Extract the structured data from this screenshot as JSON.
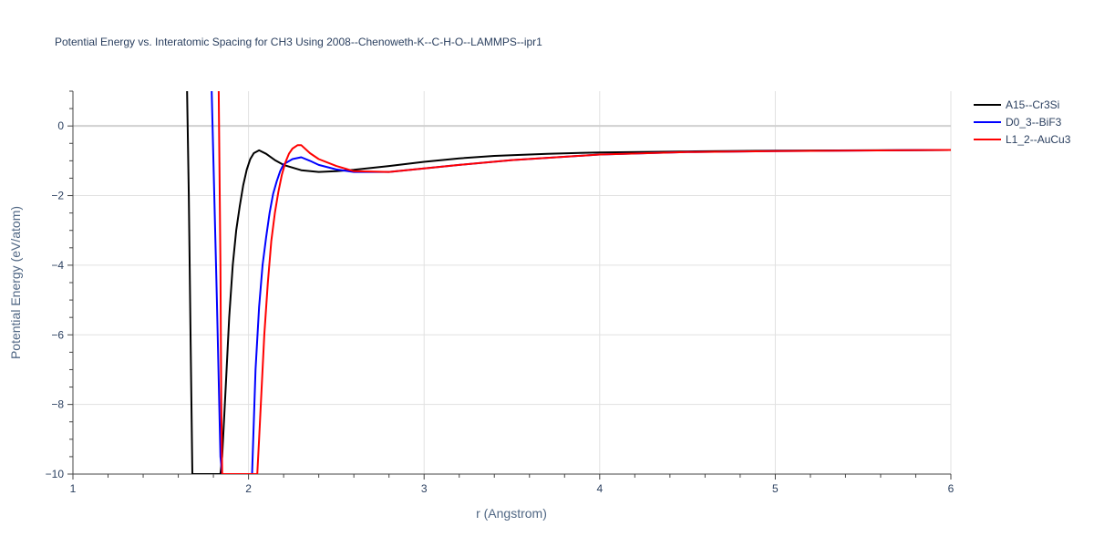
{
  "chart_data": {
    "type": "line",
    "title": "Potential Energy vs. Interatomic Spacing for CH3 Using 2008--Chenoweth-K--C-H-O--LAMMPS--ipr1",
    "xlabel": "r (Angstrom)",
    "ylabel": "Potential Energy (eV/atom)",
    "xlim": [
      1,
      6
    ],
    "ylim": [
      -10,
      1
    ],
    "xticks": [
      1,
      2,
      3,
      4,
      5,
      6
    ],
    "yticks": [
      0,
      -2,
      -4,
      -6,
      -8,
      -10
    ],
    "grid": true,
    "legend_position": "right",
    "series": [
      {
        "name": "A15--Cr3Si",
        "color": "#000000",
        "x": [
          1.65,
          1.66,
          1.67,
          1.68,
          1.69,
          1.75,
          1.8,
          1.84,
          1.85,
          1.87,
          1.89,
          1.91,
          1.93,
          1.95,
          1.97,
          1.99,
          2.01,
          2.03,
          2.06,
          2.1,
          2.15,
          2.2,
          2.3,
          2.4,
          2.5,
          2.6,
          2.8,
          3.0,
          3.2,
          3.4,
          3.7,
          4.0,
          4.5,
          5.0,
          5.5,
          6.0
        ],
        "y": [
          1.0,
          -2.0,
          -6.0,
          -10.0,
          -10.0,
          -10.0,
          -10.0,
          -10.0,
          -9.5,
          -7.5,
          -5.5,
          -4.0,
          -3.0,
          -2.3,
          -1.7,
          -1.25,
          -0.95,
          -0.78,
          -0.7,
          -0.8,
          -0.98,
          -1.12,
          -1.27,
          -1.32,
          -1.3,
          -1.26,
          -1.15,
          -1.03,
          -0.93,
          -0.86,
          -0.8,
          -0.76,
          -0.73,
          -0.71,
          -0.7,
          -0.69
        ]
      },
      {
        "name": "D0_3--BiF3",
        "color": "#0000ff",
        "x": [
          1.79,
          1.8,
          1.82,
          1.84,
          1.85,
          2.0,
          2.02,
          2.04,
          2.06,
          2.08,
          2.1,
          2.12,
          2.14,
          2.16,
          2.18,
          2.2,
          2.25,
          2.3,
          2.35,
          2.4,
          2.5,
          2.6,
          2.8,
          3.0,
          3.2,
          3.5,
          4.0,
          4.5,
          5.0,
          6.0
        ],
        "y": [
          1.0,
          -1.0,
          -5.0,
          -9.5,
          -10.0,
          -10.0,
          -10.0,
          -7.0,
          -5.2,
          -4.0,
          -3.2,
          -2.5,
          -1.95,
          -1.6,
          -1.3,
          -1.1,
          -0.95,
          -0.9,
          -1.0,
          -1.12,
          -1.25,
          -1.32,
          -1.32,
          -1.22,
          -1.12,
          -0.98,
          -0.82,
          -0.75,
          -0.72,
          -0.69
        ]
      },
      {
        "name": "L1_2--AuCu3",
        "color": "#ff0000",
        "x": [
          1.83,
          1.84,
          1.845,
          1.85,
          1.86,
          2.0,
          2.05,
          2.06,
          2.07,
          2.09,
          2.11,
          2.13,
          2.15,
          2.17,
          2.19,
          2.21,
          2.23,
          2.25,
          2.28,
          2.3,
          2.35,
          2.4,
          2.5,
          2.6,
          2.8,
          3.0,
          3.2,
          3.5,
          4.0,
          4.5,
          5.0,
          6.0
        ],
        "y": [
          1.0,
          -4.0,
          -8.0,
          -10.0,
          -10.0,
          -10.0,
          -10.0,
          -9.0,
          -8.0,
          -6.0,
          -4.5,
          -3.3,
          -2.5,
          -1.9,
          -1.4,
          -1.05,
          -0.8,
          -0.65,
          -0.55,
          -0.55,
          -0.78,
          -0.95,
          -1.15,
          -1.3,
          -1.32,
          -1.22,
          -1.12,
          -0.98,
          -0.82,
          -0.75,
          -0.72,
          -0.69
        ]
      }
    ]
  }
}
